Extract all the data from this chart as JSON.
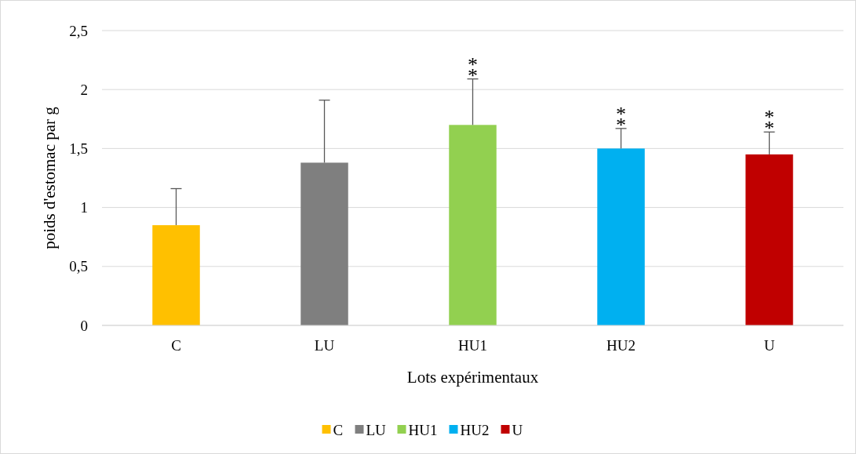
{
  "chart_data": {
    "type": "bar",
    "xlabel": "Lots expérimentaux",
    "ylabel": "poids d'estomac par g",
    "categories": [
      "C",
      "LU",
      "HU1",
      "HU2",
      "U"
    ],
    "stacked": true,
    "series": [
      {
        "name": "C",
        "color": "#ffc000",
        "values": [
          0.85,
          null,
          null,
          null,
          null
        ],
        "errors": [
          [
            0.85,
            1.16
          ],
          null,
          null,
          null,
          null
        ]
      },
      {
        "name": "LU",
        "color": "#7f7f7f",
        "values": [
          null,
          1.38,
          null,
          null,
          null
        ],
        "errors": [
          null,
          [
            1.38,
            1.91
          ],
          null,
          null,
          null
        ]
      },
      {
        "name": "HU1",
        "color": "#92d050",
        "values": [
          null,
          null,
          1.7,
          null,
          null
        ],
        "errors": [
          null,
          null,
          [
            1.7,
            2.09
          ],
          null,
          null
        ]
      },
      {
        "name": "HU2",
        "color": "#00b0f0",
        "values": [
          null,
          null,
          null,
          1.5,
          null
        ],
        "errors": [
          null,
          null,
          null,
          [
            1.5,
            1.67
          ],
          null
        ]
      },
      {
        "name": "U",
        "color": "#c00000",
        "values": [
          null,
          null,
          null,
          null,
          1.45
        ],
        "errors": [
          null,
          null,
          null,
          null,
          [
            1.45,
            1.64
          ]
        ]
      }
    ],
    "ylim": [
      0,
      2.5
    ],
    "yticks": [
      0,
      {
        "value": 0.5,
        "label": "0,5"
      },
      1,
      {
        "value": 1.5,
        "label": "1,5"
      },
      2,
      {
        "value": 2.5,
        "label": "2,5"
      }
    ],
    "grid": "y",
    "legend": "bottom",
    "annotations": [
      {
        "text": "**",
        "x": "HU1",
        "y": 2.09
      },
      {
        "text": "**",
        "x": "HU2",
        "y": 1.67
      },
      {
        "text": "**",
        "x": "U",
        "y": 1.64
      }
    ]
  }
}
